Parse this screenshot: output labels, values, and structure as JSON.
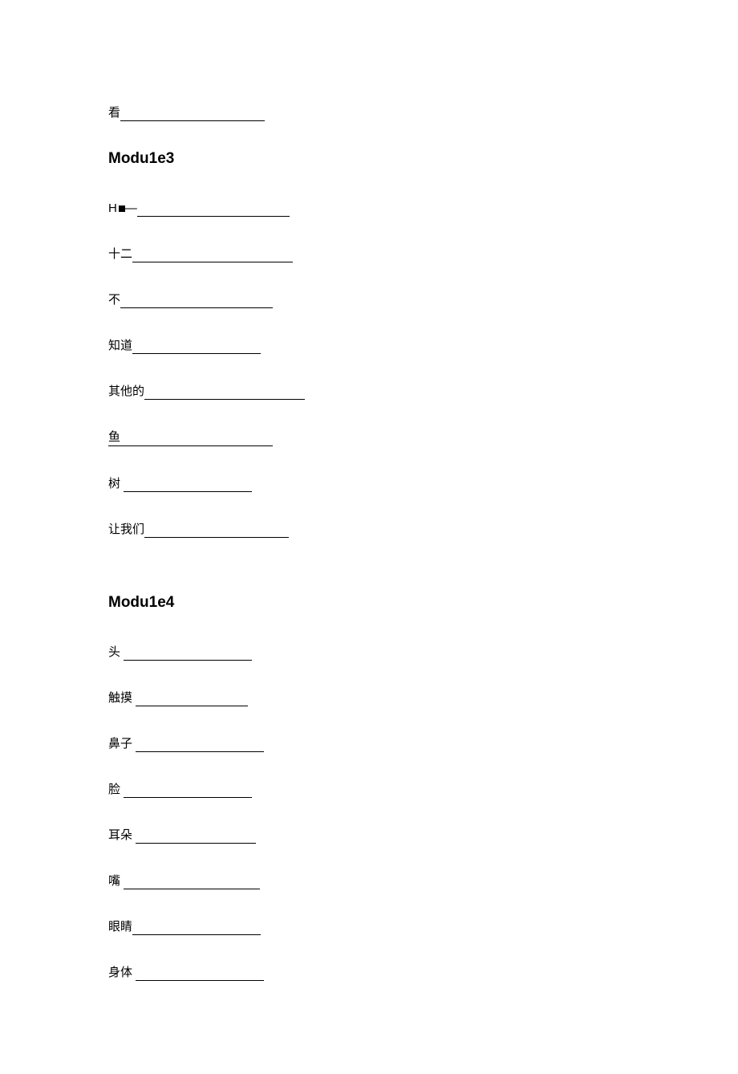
{
  "top_entry": {
    "label": "看",
    "blank_class": "blank-180"
  },
  "module3": {
    "heading": "Modu1e3",
    "items": [
      {
        "label": "H",
        "suffix": "—",
        "has_square": true,
        "blank_class": "blank-190",
        "underline_label": false
      },
      {
        "label": "十二",
        "blank_class": "blank-200",
        "underline_label": false
      },
      {
        "label": "不",
        "blank_class": "blank-190",
        "underline_label": false
      },
      {
        "label": "知道",
        "blank_class": "blank-160",
        "underline_label": false
      },
      {
        "label": "其他的",
        "blank_class": "blank-200",
        "underline_label": false
      },
      {
        "label": "鱼",
        "blank_class": "blank-190",
        "underline_label": true
      },
      {
        "label": "树 ",
        "blank_class": "blank-160",
        "underline_label": false
      },
      {
        "label": "让我们",
        "blank_class": "blank-180",
        "underline_label": false
      }
    ]
  },
  "module4": {
    "heading": "Modu1e4",
    "items": [
      {
        "label": "头 ",
        "blank_class": "blank-160"
      },
      {
        "label": "触摸 ",
        "blank_class": "blank-140"
      },
      {
        "label": "鼻子 ",
        "blank_class": "blank-160"
      },
      {
        "label": "脸 ",
        "blank_class": "blank-160"
      },
      {
        "label": "耳朵 ",
        "blank_class": "blank-150"
      },
      {
        "label": "嘴 ",
        "blank_class": "blank-170"
      },
      {
        "label": "眼睛",
        "blank_class": "blank-160"
      },
      {
        "label": "身体 ",
        "blank_class": "blank-160"
      }
    ]
  }
}
